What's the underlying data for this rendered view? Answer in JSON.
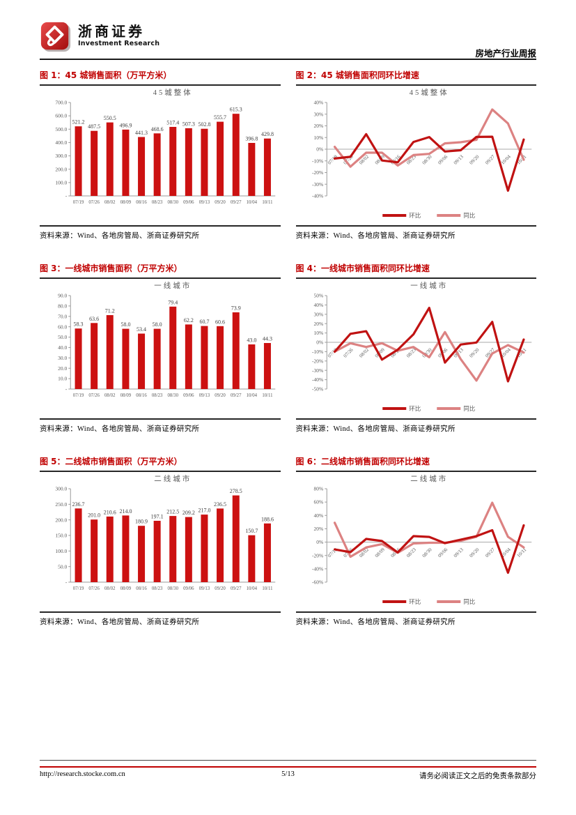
{
  "header": {
    "brand_cn": "浙商证券",
    "brand_en": "Investment Research",
    "report_type": "房地产行业周报"
  },
  "colors": {
    "accent_red": "#C00000",
    "bar": "#CC1111",
    "line_huanbi": "#C01212",
    "line_tongbi": "#DC8282",
    "axis_gray": "#9a9a9a",
    "text_gray": "#595959",
    "value_label_gray": "#3f3f3f",
    "rule_dark": "#262626"
  },
  "figures": [
    {
      "caption": "图 1：45 城销售面积（万平方米）",
      "source": "资料来源：Wind、各地房管局、浙商证券研究所"
    },
    {
      "caption": "图 2：45 城销售面积同环比增速",
      "source": "资料来源：Wind、各地房管局、浙商证券研究所"
    },
    {
      "caption": "图 3：一线城市销售面积（万平方米）",
      "source": "资料来源：Wind、各地房管局、浙商证券研究所"
    },
    {
      "caption": "图 4：一线城市销售面积同环比增速",
      "source": "资料来源：Wind、各地房管局、浙商证券研究所"
    },
    {
      "caption": "图 5：二线城市销售面积（万平方米）",
      "source": "资料来源：Wind、各地房管局、浙商证券研究所"
    },
    {
      "caption": "图 6：二线城市销售面积同环比增速",
      "source": "资料来源：Wind、各地房管局、浙商证券研究所"
    }
  ],
  "chart_data": [
    {
      "type": "bar",
      "title": "45城整体",
      "categories": [
        "07/19",
        "07/26",
        "08/02",
        "08/09",
        "08/16",
        "08/23",
        "08/30",
        "09/06",
        "09/13",
        "09/20",
        "09/27",
        "10/04",
        "10/11"
      ],
      "values": [
        521.2,
        487.5,
        550.5,
        496.9,
        441.3,
        468.6,
        517.4,
        507.3,
        502.8,
        555.7,
        615.3,
        396.8,
        429.8
      ],
      "ylim": [
        0,
        700
      ],
      "ytick_step": 100,
      "zero_tick_label": "-",
      "xlabel": "",
      "ylabel": "",
      "grid": false
    },
    {
      "type": "line",
      "title": "45城整体",
      "categories": [
        "07/19",
        "07/26",
        "08/02",
        "08/09",
        "08/16",
        "08/23",
        "08/30",
        "09/06",
        "09/13",
        "09/20",
        "09/27",
        "10/04",
        "10/11"
      ],
      "series": [
        {
          "name": "环比",
          "values": [
            -8,
            -6.5,
            12.9,
            -9.7,
            -11.2,
            6.2,
            10.4,
            -2,
            -0.9,
            10.5,
            10.7,
            -35.5,
            8.3
          ]
        },
        {
          "name": "同比",
          "values": [
            2,
            -15,
            -3,
            -3,
            -14,
            -5,
            -4,
            5,
            6,
            8,
            34,
            22,
            -9
          ]
        }
      ],
      "ylim": [
        -40,
        40
      ],
      "ytick_step": 10,
      "unit": "%",
      "legend_position": "bottom",
      "grid": false
    },
    {
      "type": "bar",
      "title": "一线城市",
      "categories": [
        "07/19",
        "07/26",
        "08/02",
        "08/09",
        "08/16",
        "08/23",
        "08/30",
        "09/06",
        "09/13",
        "09/20",
        "09/27",
        "10/04",
        "10/11"
      ],
      "values": [
        58.3,
        63.6,
        71.2,
        58.0,
        53.4,
        58.0,
        79.4,
        62.2,
        60.7,
        60.6,
        73.9,
        43.0,
        44.3
      ],
      "ylim": [
        0,
        90
      ],
      "ytick_step": 10,
      "zero_tick_label": "-",
      "xlabel": "",
      "ylabel": "",
      "grid": false
    },
    {
      "type": "line",
      "title": "一线城市",
      "categories": [
        "07/19",
        "07/26",
        "08/02",
        "08/09",
        "08/16",
        "08/23",
        "08/30",
        "09/06",
        "09/13",
        "09/20",
        "09/27",
        "10/04",
        "10/11"
      ],
      "series": [
        {
          "name": "环比",
          "values": [
            -10,
            9.1,
            11.9,
            -18.5,
            -7.9,
            8.6,
            36.9,
            -21.7,
            -2.4,
            -0.2,
            21.9,
            -41.8,
            3
          ]
        },
        {
          "name": "同比",
          "values": [
            -10,
            -1,
            -5,
            -1,
            -9,
            -5,
            -16,
            11,
            -18,
            -41,
            -12,
            -3,
            -11
          ]
        }
      ],
      "ylim": [
        -50,
        50
      ],
      "ytick_step": 10,
      "unit": "%",
      "legend_position": "bottom",
      "grid": false
    },
    {
      "type": "bar",
      "title": "二线城市",
      "categories": [
        "07/19",
        "07/26",
        "08/02",
        "08/09",
        "08/16",
        "08/23",
        "08/30",
        "09/06",
        "09/13",
        "09/20",
        "09/27",
        "10/04",
        "10/11"
      ],
      "values": [
        236.7,
        201.0,
        210.6,
        214.0,
        180.9,
        197.1,
        212.5,
        209.2,
        217.0,
        236.5,
        278.5,
        150.7,
        188.6
      ],
      "ylim": [
        0,
        300
      ],
      "ytick_step": 50,
      "zero_tick_label": "-",
      "xlabel": "",
      "ylabel": "",
      "grid": false
    },
    {
      "type": "line",
      "title": "二线城市",
      "categories": [
        "07/19",
        "07/26",
        "08/02",
        "08/09",
        "08/16",
        "08/23",
        "08/30",
        "09/06",
        "09/13",
        "09/20",
        "09/27",
        "10/04",
        "10/11"
      ],
      "series": [
        {
          "name": "环比",
          "values": [
            -11,
            -15.1,
            4.8,
            1.6,
            -15.5,
            9,
            7.8,
            -1.6,
            3.7,
            9,
            17.8,
            -45.9,
            25.1
          ]
        },
        {
          "name": "同比",
          "values": [
            29,
            -22,
            -8,
            -3,
            -16,
            -2,
            -1,
            -1,
            2,
            8,
            59,
            8,
            -8
          ]
        }
      ],
      "ylim": [
        -60,
        80
      ],
      "ytick_step": 20,
      "unit": "%",
      "legend_position": "bottom",
      "grid": false
    }
  ],
  "footer": {
    "url": "http://research.stocke.com.cn",
    "page": "5/13",
    "disclaimer": "请务必阅读正文之后的免责条款部分"
  }
}
